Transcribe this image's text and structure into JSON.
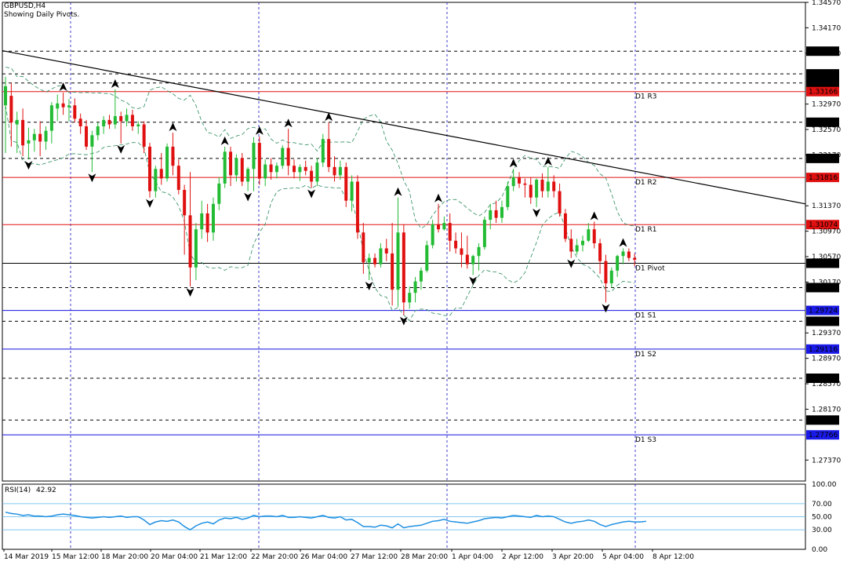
{
  "header": {
    "symbol": "GBPUSD,H4",
    "subtitle": "Showing Daily Pivots."
  },
  "chart_data": {
    "type": "candlestick",
    "instrument": "GBPUSD",
    "timeframe": "H4",
    "ylim": [
      1.2704,
      1.3457
    ],
    "y_ticks": [
      "1.34570",
      "1.34170",
      "1.33770",
      "1.32970",
      "1.32570",
      "1.32170",
      "1.31370",
      "1.30970",
      "1.30570",
      "1.30170",
      "1.29370",
      "1.28970",
      "1.28570",
      "1.28170",
      "1.27370"
    ],
    "x_ticks": [
      "14 Mar 2019",
      "15 Mar 12:00",
      "18 Mar 20:00",
      "20 Mar 04:00",
      "21 Mar 12:00",
      "22 Mar 20:00",
      "26 Mar 04:00",
      "27 Mar 12:00",
      "28 Mar 20:00",
      "1 Apr 04:00",
      "2 Apr 12:00",
      "3 Apr 20:00",
      "5 Apr 04:00",
      "8 Apr 12:00"
    ],
    "price_levels": [
      {
        "value": "1.33445",
        "style": "dashed",
        "color": "#000000",
        "label": ""
      },
      {
        "value": "1.33802",
        "style": "dashed",
        "color": "#000000",
        "label": ""
      },
      {
        "value": "1.33301",
        "style": "dashed",
        "color": "#000000",
        "label": ""
      },
      {
        "value": "1.33166",
        "style": "solid",
        "color": "#e01010",
        "label": "D1 R3"
      },
      {
        "value": "1.32684",
        "style": "dashed",
        "color": "#000000",
        "label": ""
      },
      {
        "value": "1.32115",
        "style": "dashed",
        "color": "#000000",
        "label": ""
      },
      {
        "value": "1.31816",
        "style": "solid",
        "color": "#e01010",
        "label": "D1 R2"
      },
      {
        "value": "1.31074",
        "style": "solid",
        "color": "#e01010",
        "label": "D1 R1"
      },
      {
        "value": "1.30466",
        "style": "solid",
        "color": "#000000",
        "label": "D1 Pivot"
      },
      {
        "value": "1.30083",
        "style": "dashed",
        "color": "#000000",
        "label": ""
      },
      {
        "value": "1.29724",
        "style": "solid",
        "color": "#1010e0",
        "label": "D1 S1"
      },
      {
        "value": "1.29553",
        "style": "dashed",
        "color": "#000000",
        "label": ""
      },
      {
        "value": "1.29116",
        "style": "solid",
        "color": "#1010e0",
        "label": "D1 S2"
      },
      {
        "value": "1.28657",
        "style": "dashed",
        "color": "#000000",
        "label": ""
      },
      {
        "value": "1.27999",
        "style": "dashed",
        "color": "#000000",
        "label": ""
      },
      {
        "value": "1.27766",
        "style": "solid",
        "color": "#1010e0",
        "label": "D1 S3"
      }
    ],
    "trendline": {
      "from": [
        0,
        1.3381
      ],
      "to": [
        112,
        1.314
      ],
      "color": "#000000"
    },
    "candles": [
      {
        "o": 1.3295,
        "h": 1.334,
        "l": 1.322,
        "c": 1.3325
      },
      {
        "o": 1.331,
        "h": 1.333,
        "l": 1.323,
        "c": 1.3268
      },
      {
        "o": 1.3265,
        "h": 1.3285,
        "l": 1.322,
        "c": 1.3272
      },
      {
        "o": 1.3272,
        "h": 1.329,
        "l": 1.3215,
        "c": 1.3232
      },
      {
        "o": 1.3235,
        "h": 1.326,
        "l": 1.321,
        "c": 1.324
      },
      {
        "o": 1.324,
        "h": 1.3258,
        "l": 1.3222,
        "c": 1.325
      },
      {
        "o": 1.325,
        "h": 1.327,
        "l": 1.3215,
        "c": 1.3238
      },
      {
        "o": 1.3238,
        "h": 1.3262,
        "l": 1.3225,
        "c": 1.3255
      },
      {
        "o": 1.3255,
        "h": 1.33,
        "l": 1.3235,
        "c": 1.3295
      },
      {
        "o": 1.329,
        "h": 1.3312,
        "l": 1.327,
        "c": 1.3298
      },
      {
        "o": 1.3298,
        "h": 1.3315,
        "l": 1.328,
        "c": 1.3292
      },
      {
        "o": 1.3292,
        "h": 1.3305,
        "l": 1.327,
        "c": 1.3295
      },
      {
        "o": 1.3295,
        "h": 1.3306,
        "l": 1.3268,
        "c": 1.3274
      },
      {
        "o": 1.3274,
        "h": 1.3282,
        "l": 1.325,
        "c": 1.3262
      },
      {
        "o": 1.3262,
        "h": 1.3272,
        "l": 1.3225,
        "c": 1.323
      },
      {
        "o": 1.323,
        "h": 1.3255,
        "l": 1.319,
        "c": 1.3248
      },
      {
        "o": 1.3248,
        "h": 1.3268,
        "l": 1.324,
        "c": 1.3262
      },
      {
        "o": 1.3262,
        "h": 1.3278,
        "l": 1.325,
        "c": 1.3272
      },
      {
        "o": 1.3272,
        "h": 1.328,
        "l": 1.3258,
        "c": 1.3265
      },
      {
        "o": 1.3265,
        "h": 1.332,
        "l": 1.3258,
        "c": 1.3278
      },
      {
        "o": 1.3278,
        "h": 1.3285,
        "l": 1.3235,
        "c": 1.327
      },
      {
        "o": 1.327,
        "h": 1.329,
        "l": 1.3262,
        "c": 1.328
      },
      {
        "o": 1.328,
        "h": 1.3288,
        "l": 1.3255,
        "c": 1.3262
      },
      {
        "o": 1.3262,
        "h": 1.327,
        "l": 1.325,
        "c": 1.3265
      },
      {
        "o": 1.3265,
        "h": 1.327,
        "l": 1.322,
        "c": 1.323
      },
      {
        "o": 1.323,
        "h": 1.3236,
        "l": 1.315,
        "c": 1.316
      },
      {
        "o": 1.316,
        "h": 1.32,
        "l": 1.315,
        "c": 1.3195
      },
      {
        "o": 1.3195,
        "h": 1.322,
        "l": 1.317,
        "c": 1.318
      },
      {
        "o": 1.318,
        "h": 1.3235,
        "l": 1.3175,
        "c": 1.323
      },
      {
        "o": 1.323,
        "h": 1.3252,
        "l": 1.3185,
        "c": 1.32
      },
      {
        "o": 1.32,
        "h": 1.321,
        "l": 1.3155,
        "c": 1.3162
      },
      {
        "o": 1.3162,
        "h": 1.317,
        "l": 1.306,
        "c": 1.3122
      },
      {
        "o": 1.3122,
        "h": 1.319,
        "l": 1.301,
        "c": 1.304
      },
      {
        "o": 1.304,
        "h": 1.311,
        "l": 1.302,
        "c": 1.31
      },
      {
        "o": 1.31,
        "h": 1.3145,
        "l": 1.3085,
        "c": 1.3125
      },
      {
        "o": 1.3125,
        "h": 1.314,
        "l": 1.308,
        "c": 1.3095
      },
      {
        "o": 1.3095,
        "h": 1.315,
        "l": 1.3082,
        "c": 1.314
      },
      {
        "o": 1.314,
        "h": 1.3182,
        "l": 1.313,
        "c": 1.3172
      },
      {
        "o": 1.3172,
        "h": 1.323,
        "l": 1.3165,
        "c": 1.3222
      },
      {
        "o": 1.3222,
        "h": 1.323,
        "l": 1.3168,
        "c": 1.3185
      },
      {
        "o": 1.3185,
        "h": 1.3218,
        "l": 1.3175,
        "c": 1.3212
      },
      {
        "o": 1.3212,
        "h": 1.322,
        "l": 1.3168,
        "c": 1.3175
      },
      {
        "o": 1.3175,
        "h": 1.3198,
        "l": 1.316,
        "c": 1.3195
      },
      {
        "o": 1.3195,
        "h": 1.3245,
        "l": 1.316,
        "c": 1.3236
      },
      {
        "o": 1.3236,
        "h": 1.3246,
        "l": 1.317,
        "c": 1.318
      },
      {
        "o": 1.318,
        "h": 1.321,
        "l": 1.3168,
        "c": 1.3202
      },
      {
        "o": 1.3202,
        "h": 1.3212,
        "l": 1.3178,
        "c": 1.319
      },
      {
        "o": 1.319,
        "h": 1.3205,
        "l": 1.318,
        "c": 1.32
      },
      {
        "o": 1.32,
        "h": 1.3232,
        "l": 1.3195,
        "c": 1.3228
      },
      {
        "o": 1.3228,
        "h": 1.3258,
        "l": 1.3185,
        "c": 1.32
      },
      {
        "o": 1.32,
        "h": 1.321,
        "l": 1.318,
        "c": 1.319
      },
      {
        "o": 1.319,
        "h": 1.3202,
        "l": 1.3176,
        "c": 1.3198
      },
      {
        "o": 1.3198,
        "h": 1.3208,
        "l": 1.3185,
        "c": 1.3192
      },
      {
        "o": 1.3192,
        "h": 1.32,
        "l": 1.3165,
        "c": 1.3175
      },
      {
        "o": 1.3175,
        "h": 1.3212,
        "l": 1.3168,
        "c": 1.3205
      },
      {
        "o": 1.3205,
        "h": 1.325,
        "l": 1.3198,
        "c": 1.3242
      },
      {
        "o": 1.3242,
        "h": 1.3268,
        "l": 1.319,
        "c": 1.3198
      },
      {
        "o": 1.3198,
        "h": 1.3215,
        "l": 1.3175,
        "c": 1.3185
      },
      {
        "o": 1.3185,
        "h": 1.3208,
        "l": 1.3178,
        "c": 1.3198
      },
      {
        "o": 1.3198,
        "h": 1.3205,
        "l": 1.3135,
        "c": 1.3145
      },
      {
        "o": 1.3145,
        "h": 1.3185,
        "l": 1.3128,
        "c": 1.3175
      },
      {
        "o": 1.3175,
        "h": 1.3185,
        "l": 1.3085,
        "c": 1.3095
      },
      {
        "o": 1.3095,
        "h": 1.311,
        "l": 1.303,
        "c": 1.3048
      },
      {
        "o": 1.3048,
        "h": 1.3062,
        "l": 1.302,
        "c": 1.3055
      },
      {
        "o": 1.3055,
        "h": 1.3062,
        "l": 1.304,
        "c": 1.3045
      },
      {
        "o": 1.3045,
        "h": 1.3078,
        "l": 1.304,
        "c": 1.307
      },
      {
        "o": 1.307,
        "h": 1.3085,
        "l": 1.305,
        "c": 1.3062
      },
      {
        "o": 1.3062,
        "h": 1.311,
        "l": 1.298,
        "c": 1.3005
      },
      {
        "o": 1.3005,
        "h": 1.315,
        "l": 1.2978,
        "c": 1.3095
      },
      {
        "o": 1.3095,
        "h": 1.3108,
        "l": 1.2965,
        "c": 1.2985
      },
      {
        "o": 1.2985,
        "h": 1.301,
        "l": 1.2975,
        "c": 1.3
      },
      {
        "o": 1.3,
        "h": 1.3025,
        "l": 1.2985,
        "c": 1.3018
      },
      {
        "o": 1.3018,
        "h": 1.304,
        "l": 1.3005,
        "c": 1.3035
      },
      {
        "o": 1.3035,
        "h": 1.3082,
        "l": 1.3032,
        "c": 1.3075
      },
      {
        "o": 1.3075,
        "h": 1.3115,
        "l": 1.307,
        "c": 1.3108
      },
      {
        "o": 1.3108,
        "h": 1.314,
        "l": 1.3095,
        "c": 1.31
      },
      {
        "o": 1.31,
        "h": 1.312,
        "l": 1.3098,
        "c": 1.311
      },
      {
        "o": 1.311,
        "h": 1.3125,
        "l": 1.3065,
        "c": 1.3082
      },
      {
        "o": 1.3082,
        "h": 1.3095,
        "l": 1.3062,
        "c": 1.307
      },
      {
        "o": 1.307,
        "h": 1.3095,
        "l": 1.304,
        "c": 1.306
      },
      {
        "o": 1.306,
        "h": 1.309,
        "l": 1.3038,
        "c": 1.3045
      },
      {
        "o": 1.3045,
        "h": 1.306,
        "l": 1.3028,
        "c": 1.3058
      },
      {
        "o": 1.3058,
        "h": 1.3078,
        "l": 1.3035,
        "c": 1.3072
      },
      {
        "o": 1.3072,
        "h": 1.312,
        "l": 1.3068,
        "c": 1.3115
      },
      {
        "o": 1.3115,
        "h": 1.314,
        "l": 1.31,
        "c": 1.313
      },
      {
        "o": 1.313,
        "h": 1.3145,
        "l": 1.311,
        "c": 1.3118
      },
      {
        "o": 1.3118,
        "h": 1.3145,
        "l": 1.311,
        "c": 1.3135
      },
      {
        "o": 1.3135,
        "h": 1.3175,
        "l": 1.313,
        "c": 1.3168
      },
      {
        "o": 1.3168,
        "h": 1.3195,
        "l": 1.316,
        "c": 1.3182
      },
      {
        "o": 1.3182,
        "h": 1.319,
        "l": 1.3165,
        "c": 1.3172
      },
      {
        "o": 1.3172,
        "h": 1.318,
        "l": 1.315,
        "c": 1.317
      },
      {
        "o": 1.317,
        "h": 1.3182,
        "l": 1.314,
        "c": 1.315
      },
      {
        "o": 1.315,
        "h": 1.318,
        "l": 1.3135,
        "c": 1.3178
      },
      {
        "o": 1.3178,
        "h": 1.3188,
        "l": 1.315,
        "c": 1.316
      },
      {
        "o": 1.316,
        "h": 1.3198,
        "l": 1.315,
        "c": 1.3175
      },
      {
        "o": 1.3175,
        "h": 1.3185,
        "l": 1.315,
        "c": 1.316
      },
      {
        "o": 1.316,
        "h": 1.3172,
        "l": 1.312,
        "c": 1.3125
      },
      {
        "o": 1.3125,
        "h": 1.3132,
        "l": 1.308,
        "c": 1.3085
      },
      {
        "o": 1.3085,
        "h": 1.31,
        "l": 1.3055,
        "c": 1.3065
      },
      {
        "o": 1.3065,
        "h": 1.3085,
        "l": 1.306,
        "c": 1.3075
      },
      {
        "o": 1.3075,
        "h": 1.309,
        "l": 1.3065,
        "c": 1.3082
      },
      {
        "o": 1.3082,
        "h": 1.311,
        "l": 1.308,
        "c": 1.31
      },
      {
        "o": 1.31,
        "h": 1.3112,
        "l": 1.307,
        "c": 1.3078
      },
      {
        "o": 1.3078,
        "h": 1.3085,
        "l": 1.303,
        "c": 1.305
      },
      {
        "o": 1.305,
        "h": 1.306,
        "l": 1.2985,
        "c": 1.3015
      },
      {
        "o": 1.3015,
        "h": 1.304,
        "l": 1.3008,
        "c": 1.3035
      },
      {
        "o": 1.3035,
        "h": 1.306,
        "l": 1.3025,
        "c": 1.3058
      },
      {
        "o": 1.3058,
        "h": 1.307,
        "l": 1.3045,
        "c": 1.3065
      },
      {
        "o": 1.3065,
        "h": 1.307,
        "l": 1.305,
        "c": 1.3055
      },
      {
        "o": 1.3055,
        "h": 1.3062,
        "l": 1.3042,
        "c": 1.3052
      }
    ],
    "rsi": {
      "label": "RSI(14)",
      "value": "42.92",
      "ylim": [
        0,
        100
      ],
      "levels": [
        100,
        70,
        50,
        30
      ],
      "ticks": [
        "100.00",
        "70.00",
        "50.00",
        "30.00",
        "0.00"
      ],
      "color": "#1e8fe0",
      "values": [
        57,
        55,
        54,
        52,
        53,
        51,
        51,
        50,
        51,
        53,
        54,
        53,
        52,
        50,
        49,
        48,
        49,
        50,
        49,
        50,
        51,
        49,
        50,
        50,
        45,
        38,
        42,
        44,
        43,
        45,
        42,
        35,
        30,
        36,
        40,
        42,
        39,
        45,
        48,
        47,
        49,
        46,
        48,
        52,
        50,
        51,
        51,
        50,
        52,
        49,
        49,
        50,
        49,
        48,
        50,
        52,
        49,
        48,
        50,
        45,
        46,
        41,
        35,
        35,
        34,
        37,
        36,
        33,
        39,
        33,
        35,
        36,
        37,
        40,
        43,
        44,
        46,
        43,
        42,
        41,
        40,
        42,
        44,
        47,
        48,
        49,
        48,
        50,
        52,
        51,
        50,
        49,
        52,
        50,
        51,
        50,
        46,
        42,
        40,
        42,
        43,
        45,
        43,
        38,
        35,
        38,
        40,
        42,
        43,
        42,
        42,
        43
      ],
      "colors_note": ""
    },
    "colors": {
      "bull": "#22bb33",
      "bear": "#e01010",
      "grid": "#3c3cc8",
      "resistance": "#e01010",
      "support": "#1010e0",
      "rsi_line": "#1e8fe0"
    }
  }
}
